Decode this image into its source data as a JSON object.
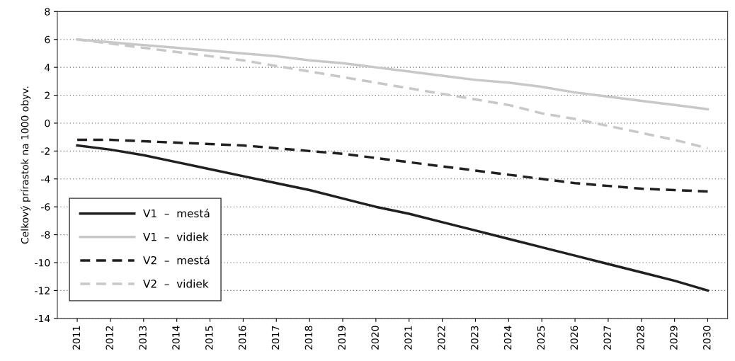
{
  "chart_data": {
    "type": "line",
    "ylabel": "Celkový prírastok na 1000 obyv.",
    "categories": [
      "2011",
      "2012",
      "2013",
      "2014",
      "2015",
      "2016",
      "2017",
      "2018",
      "2019",
      "2020",
      "2021",
      "2022",
      "2023",
      "2024",
      "2025",
      "2026",
      "2027",
      "2028",
      "2029",
      "2030"
    ],
    "series": [
      {
        "name": "V1  –  mestá",
        "color": "#231f20",
        "line_style": "solid",
        "values": [
          -1.6,
          -1.9,
          -2.3,
          -2.8,
          -3.3,
          -3.8,
          -4.3,
          -4.8,
          -5.4,
          -6.0,
          -6.5,
          -7.1,
          -7.7,
          -8.3,
          -8.9,
          -9.5,
          -10.1,
          -10.7,
          -11.3,
          -12.0
        ]
      },
      {
        "name": "V1  –  vidiek",
        "color": "#c8c8c8",
        "line_style": "solid",
        "values": [
          6.0,
          5.8,
          5.6,
          5.4,
          5.2,
          5.0,
          4.8,
          4.5,
          4.3,
          4.0,
          3.7,
          3.4,
          3.1,
          2.9,
          2.6,
          2.2,
          1.9,
          1.6,
          1.3,
          1.0
        ]
      },
      {
        "name": "V2  –  mestá",
        "color": "#231f20",
        "line_style": "dashed",
        "values": [
          -1.2,
          -1.2,
          -1.3,
          -1.4,
          -1.5,
          -1.6,
          -1.8,
          -2.0,
          -2.2,
          -2.5,
          -2.8,
          -3.1,
          -3.4,
          -3.7,
          -4.0,
          -4.3,
          -4.5,
          -4.7,
          -4.8,
          -4.9
        ]
      },
      {
        "name": "V2  –  vidiek",
        "color": "#c8c8c8",
        "line_style": "dashed",
        "values": [
          6.0,
          5.7,
          5.4,
          5.1,
          4.8,
          4.5,
          4.1,
          3.7,
          3.3,
          2.9,
          2.5,
          2.1,
          1.7,
          1.3,
          0.7,
          0.3,
          -0.2,
          -0.7,
          -1.2,
          -1.8
        ]
      }
    ],
    "ylim": [
      -14,
      8
    ],
    "yticks": [
      -14,
      -12,
      -10,
      -8,
      -6,
      -4,
      -2,
      0,
      2,
      4,
      6,
      8
    ],
    "grid": "y",
    "legend": "bottom left",
    "marker": "none"
  }
}
